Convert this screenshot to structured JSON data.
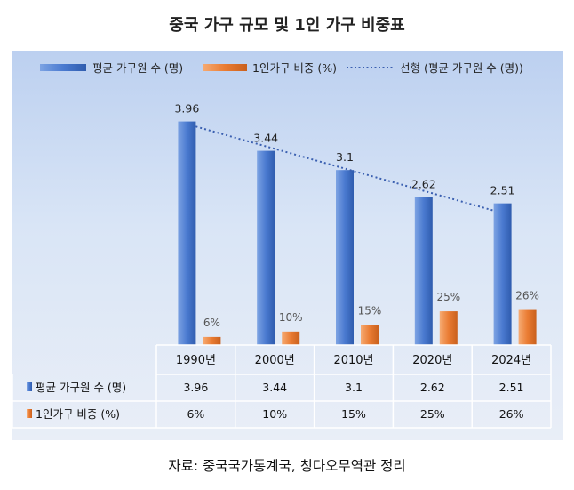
{
  "title": "중국 가구 규모 및 1인 가구 비중표",
  "source": "자료: 중국국가통계국, 칭다오무역관 정리",
  "colors": {
    "bar_primary": "#3f72c8",
    "bar_secondary": "#e8762d",
    "trend": "#3a5fb0"
  },
  "chart_data": {
    "type": "bar",
    "categories": [
      "1990년",
      "2000년",
      "2010년",
      "2020년",
      "2024년"
    ],
    "series": [
      {
        "name": "평균 가구원 수 (명)",
        "values": [
          3.96,
          3.44,
          3.1,
          2.62,
          2.51
        ],
        "labels": [
          "3.96",
          "3.44",
          "3.1",
          "2.62",
          "2.51"
        ],
        "color": "#3f72c8"
      },
      {
        "name": "1인가구 비중 (%)",
        "values": [
          6,
          10,
          15,
          25,
          26
        ],
        "labels": [
          "6%",
          "10%",
          "15%",
          "25%",
          "26%"
        ],
        "color": "#e8762d"
      }
    ],
    "trendline": {
      "name": "선형 (평균 가구원 수 (명))",
      "series": 0,
      "style": "dotted"
    },
    "ylim_primary": [
      0,
      4.3
    ],
    "ylim_secondary": [
      0,
      180
    ],
    "legend": "top",
    "grid": false,
    "data_table": {
      "row_labels": [
        "평균 가구원 수 (명)",
        "1인가구 비중 (%)"
      ]
    }
  }
}
